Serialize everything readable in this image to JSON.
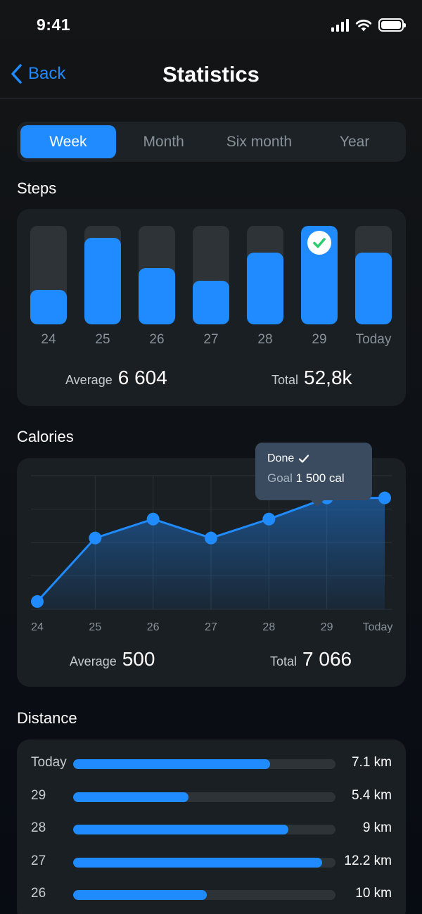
{
  "status_bar": {
    "time": "9:41"
  },
  "nav": {
    "back_label": "Back",
    "title": "Statistics"
  },
  "tabs": [
    {
      "label": "Week",
      "active": true
    },
    {
      "label": "Month",
      "active": false
    },
    {
      "label": "Six month",
      "active": false
    },
    {
      "label": "Year",
      "active": false
    }
  ],
  "steps": {
    "title": "Steps",
    "days": [
      {
        "label": "24",
        "fill": 0.35
      },
      {
        "label": "25",
        "fill": 0.88
      },
      {
        "label": "26",
        "fill": 0.57
      },
      {
        "label": "27",
        "fill": 0.44
      },
      {
        "label": "28",
        "fill": 0.73
      },
      {
        "label": "29",
        "fill": 1.0,
        "goal_reached": true
      },
      {
        "label": "Today",
        "fill": 0.73
      }
    ],
    "average_label": "Average",
    "average_value": "6 604",
    "total_label": "Total",
    "total_value": "52,8k"
  },
  "calories": {
    "title": "Calories",
    "chart_data": {
      "type": "area",
      "categories": [
        "24",
        "25",
        "26",
        "27",
        "28",
        "29",
        "Today"
      ],
      "values": [
        0.07,
        0.64,
        0.81,
        0.64,
        0.81,
        1.0,
        1.0
      ],
      "ylim": [
        0,
        1.2
      ]
    },
    "tooltip": {
      "status": "Done",
      "goal_label": "Goal",
      "goal_value": "1 500 cal"
    },
    "average_label": "Average",
    "average_value": "500",
    "total_label": "Total",
    "total_value": "7 066"
  },
  "distance": {
    "title": "Distance",
    "rows": [
      {
        "day": "Today",
        "value": "7.1 km",
        "fill": 0.75
      },
      {
        "day": "29",
        "value": "5.4 km",
        "fill": 0.44
      },
      {
        "day": "28",
        "value": "9 km",
        "fill": 0.82
      },
      {
        "day": "27",
        "value": "12.2 km",
        "fill": 0.95
      },
      {
        "day": "26",
        "value": "10 km",
        "fill": 0.51
      }
    ]
  },
  "colors": {
    "accent": "#1f8bff",
    "success": "#2ecc71"
  }
}
